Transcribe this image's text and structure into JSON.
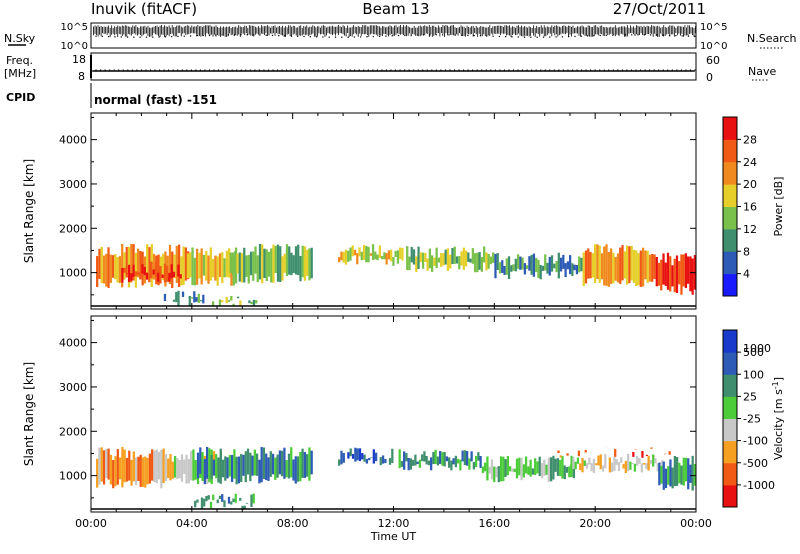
{
  "header": {
    "station": "Inuvik (fitACF)",
    "beam": "Beam 13",
    "date": "27/Oct/2011"
  },
  "panels": {
    "nsky_label": "N.Sky",
    "nsky_ticks": [
      "10^5",
      "10^0"
    ],
    "nsearch_label": "N.Search",
    "nsearch_ticks": [
      "10^5",
      "10^0"
    ],
    "freq_label": "Freq.",
    "freq_unit": "[MHz]",
    "freq_ticks": [
      "18",
      "8"
    ],
    "nave_label": "Nave",
    "nave_ticks": [
      "60",
      "0"
    ],
    "cpid_label": "CPID",
    "cpid_value": "normal (fast) -151"
  },
  "colors": {
    "power": [
      "#1a1aff",
      "#2d5bb5",
      "#3f8f6e",
      "#79c14a",
      "#e6cf2a",
      "#f08a1e",
      "#f05a14",
      "#e81010"
    ],
    "velocity": [
      "#e81010",
      "#f05a14",
      "#f5a020",
      "#c8c8c8",
      "#4dcc39",
      "#3f8f6e",
      "#2d5bb5",
      "#1a3acc"
    ]
  },
  "chart_data": [
    {
      "type": "heatmap",
      "quantity": "power",
      "ylabel": "Slant Range [km]",
      "yticks": [
        1000,
        2000,
        3000,
        4000
      ],
      "ylim": [
        180,
        4600
      ],
      "colorbar_label": "Power [dB]",
      "colorbar_ticks": [
        "4",
        "8",
        "12",
        "16",
        "20",
        "24",
        "28"
      ],
      "colorbar_range": [
        0,
        32
      ],
      "blobs": [
        {
          "t0": 0.2,
          "t1": 3.9,
          "r0": 650,
          "r1": 1650,
          "level": 5
        },
        {
          "t0": 1.2,
          "t1": 3.6,
          "r0": 750,
          "r1": 1250,
          "level": 7
        },
        {
          "t0": 3.8,
          "t1": 5.8,
          "r0": 700,
          "r1": 1600,
          "level": 4
        },
        {
          "t0": 5.5,
          "t1": 8.8,
          "r0": 750,
          "r1": 1650,
          "level": 3
        },
        {
          "t0": 2.8,
          "t1": 4.5,
          "r0": 250,
          "r1": 600,
          "level": 2
        },
        {
          "t0": 4.8,
          "t1": 6.6,
          "r0": 220,
          "r1": 500,
          "level": 3
        },
        {
          "t0": 9.8,
          "t1": 12.4,
          "r0": 1150,
          "r1": 1650,
          "level": 4
        },
        {
          "t0": 12.5,
          "t1": 16.0,
          "r0": 1000,
          "r1": 1600,
          "level": 3
        },
        {
          "t0": 16.0,
          "t1": 19.5,
          "r0": 850,
          "r1": 1450,
          "level": 2
        },
        {
          "t0": 19.5,
          "t1": 22.4,
          "r0": 650,
          "r1": 1650,
          "level": 5
        },
        {
          "t0": 22.4,
          "t1": 24.0,
          "r0": 500,
          "r1": 1450,
          "level": 7
        }
      ]
    },
    {
      "type": "heatmap",
      "quantity": "velocity",
      "ylabel": "Slant Range [km]",
      "yticks": [
        1000,
        2000,
        3000,
        4000
      ],
      "ylim": [
        180,
        4600
      ],
      "xlabel": "Time UT",
      "xticks": [
        "00:00",
        "04:00",
        "08:00",
        "12:00",
        "16:00",
        "20:00",
        "00:00"
      ],
      "xlim": [
        0,
        24
      ],
      "colorbar_label": "Velocity [m s^-1]",
      "colorbar_ticks": [
        "-1000",
        "-500",
        "-100",
        "-25",
        "25",
        "100",
        "500",
        "1000"
      ],
      "blobs": [
        {
          "t0": 0.2,
          "t1": 3.2,
          "r0": 700,
          "r1": 1650,
          "level": 2
        },
        {
          "t0": 3.2,
          "t1": 5.2,
          "r0": 800,
          "r1": 1600,
          "level": 3
        },
        {
          "t0": 4.2,
          "t1": 8.8,
          "r0": 800,
          "r1": 1650,
          "level": 5
        },
        {
          "t0": 4.0,
          "t1": 6.5,
          "r0": 230,
          "r1": 600,
          "level": 5
        },
        {
          "t0": 9.8,
          "t1": 12.0,
          "r0": 1200,
          "r1": 1650,
          "level": 6
        },
        {
          "t0": 12.2,
          "t1": 15.5,
          "r0": 1100,
          "r1": 1600,
          "level": 5
        },
        {
          "t0": 15.5,
          "t1": 19.2,
          "r0": 850,
          "r1": 1450,
          "level": 4
        },
        {
          "t0": 19.0,
          "t1": 22.8,
          "r0": 1050,
          "r1": 1500,
          "level": 3
        },
        {
          "t0": 18.5,
          "t1": 23.0,
          "r0": 1400,
          "r1": 1650,
          "level": 1
        },
        {
          "t0": 22.5,
          "t1": 24.0,
          "r0": 650,
          "r1": 1450,
          "level": 5
        }
      ]
    }
  ]
}
